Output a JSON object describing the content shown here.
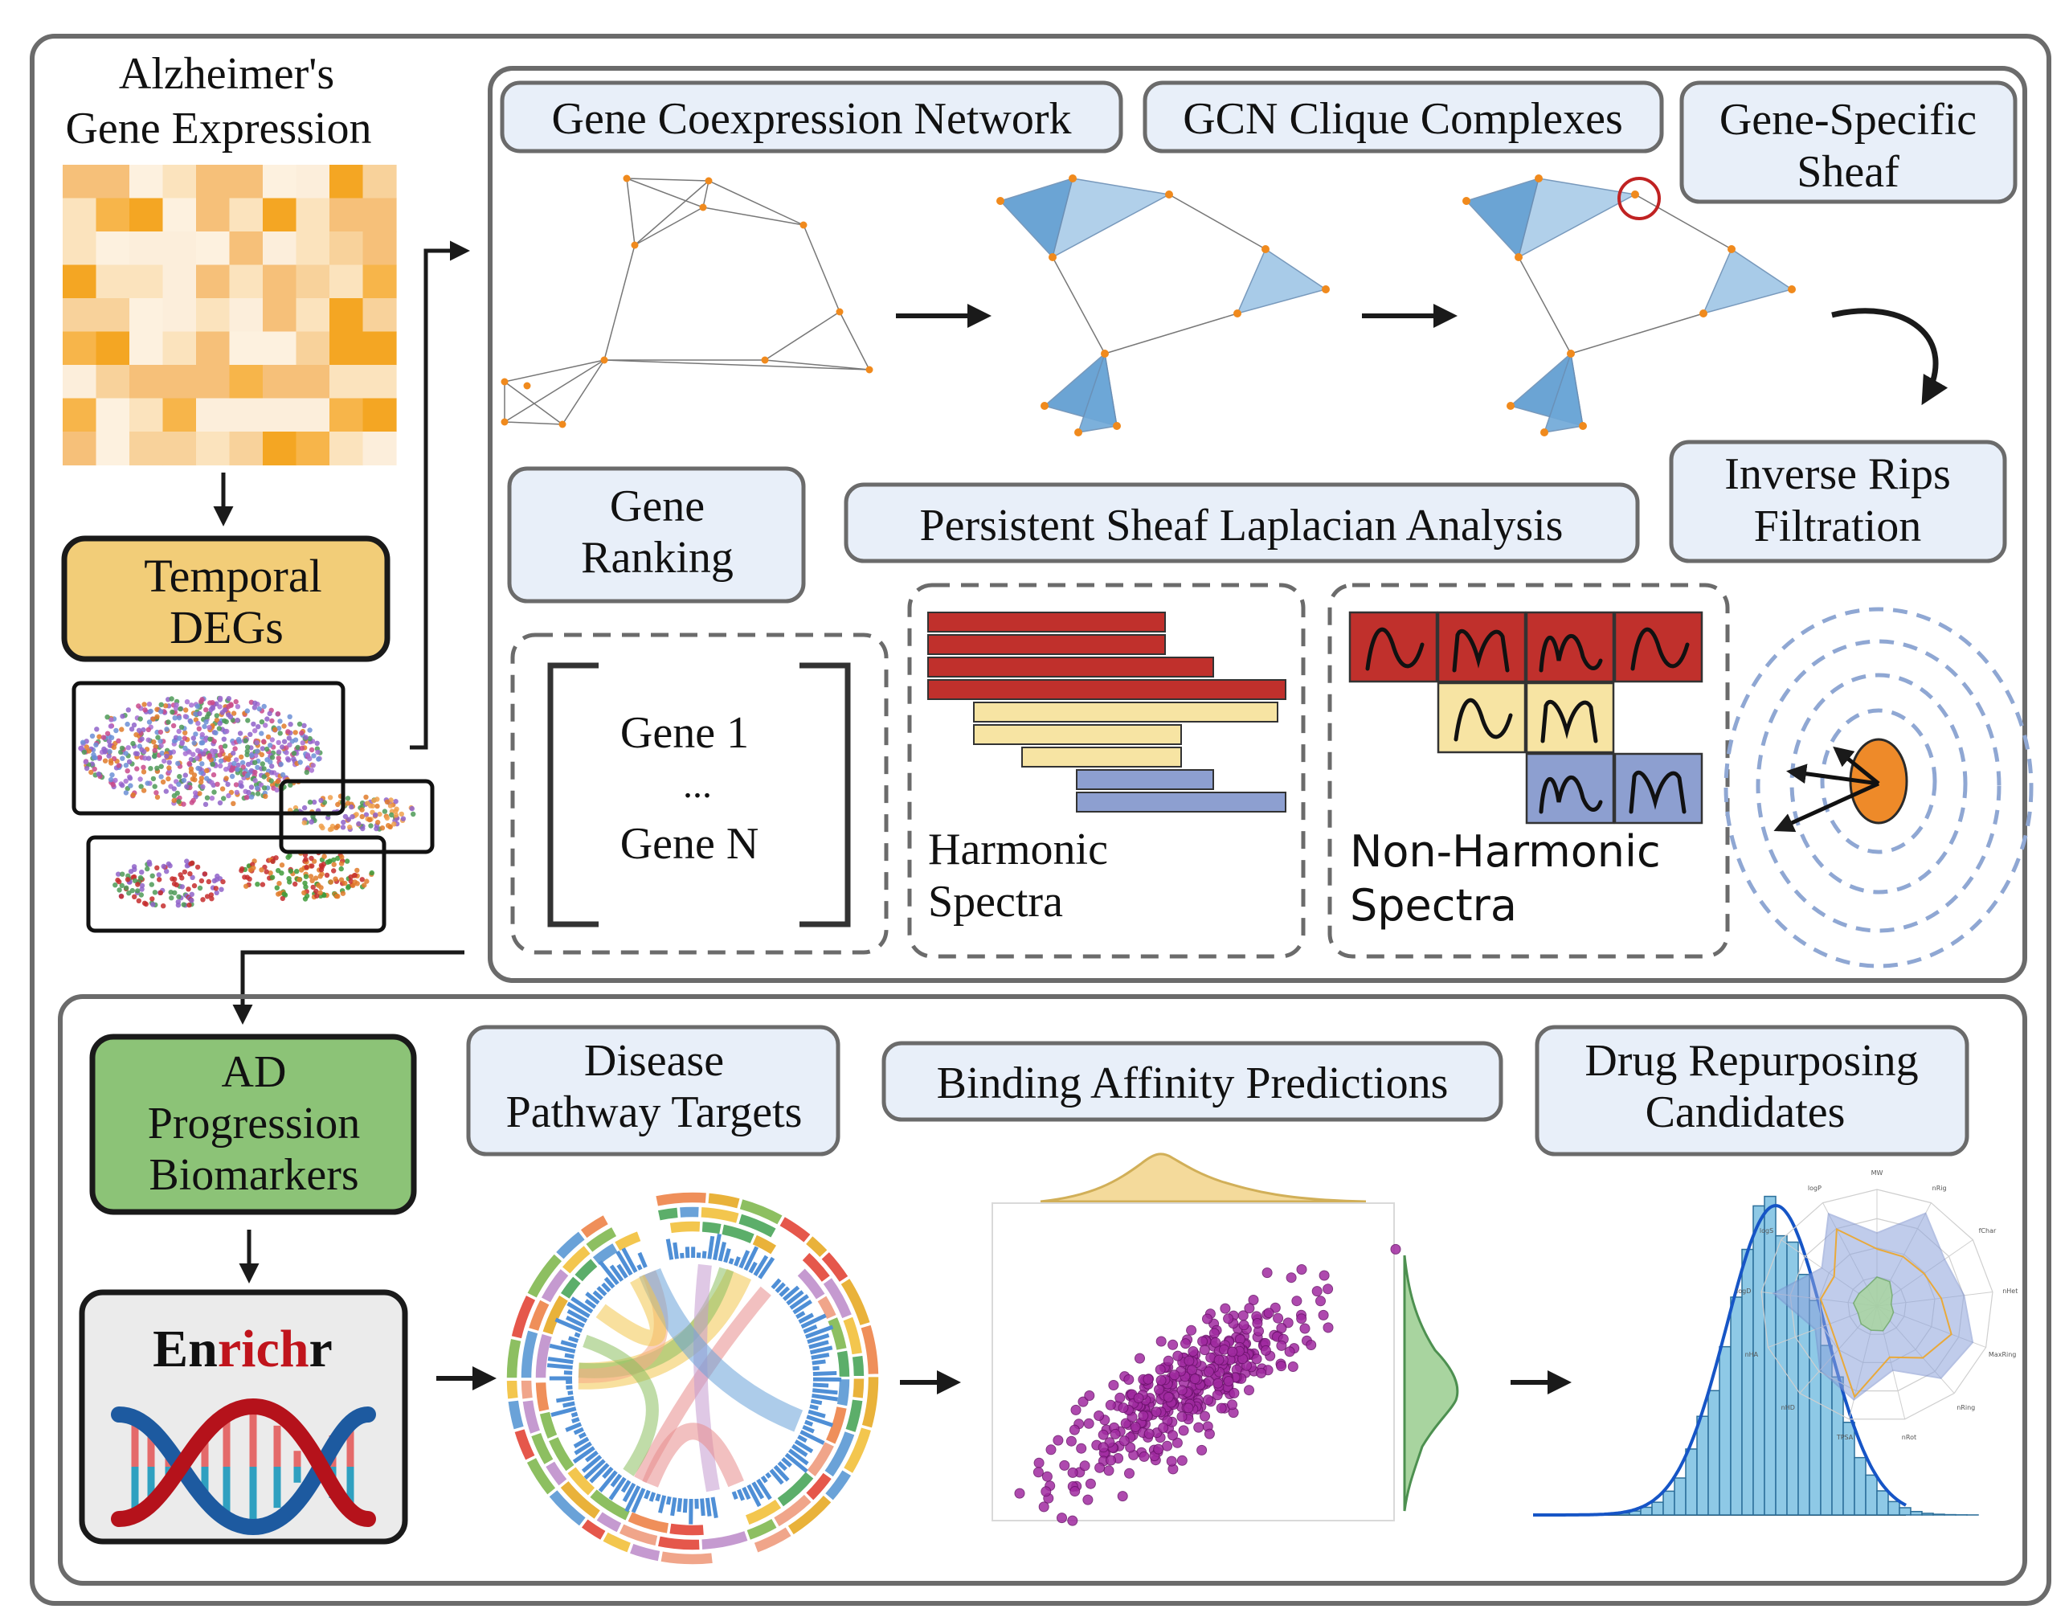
{
  "title": "Alzheimer's Gene Expression",
  "title_lines": [
    "Alzheimer's",
    "Gene Expression"
  ],
  "left": {
    "temporal_degs_lines": [
      "Temporal",
      "DEGs"
    ],
    "ad_biomarkers_lines": [
      "AD",
      "Progression",
      "Biomarkers"
    ],
    "enrichr": {
      "en": "En",
      "rich": "rich",
      "r": "r"
    }
  },
  "top_panel": {
    "gcn_label": "Gene Coexpression Network",
    "clique_label": "GCN Clique Complexes",
    "sheaf_label_lines": [
      "Gene-Specific",
      "Sheaf"
    ],
    "rips_label_lines": [
      "Inverse Rips",
      "Filtration"
    ],
    "pslap_label": "Persistent Sheaf Laplacian Analysis",
    "ranking_label_lines": [
      "Gene",
      "Ranking"
    ],
    "gene_list": [
      "Gene 1",
      "...",
      "Gene N"
    ],
    "harmonic_lines": [
      "Harmonic",
      "Spectra"
    ],
    "nonharmonic_lines": [
      "Non-Harmonic",
      "Spectra"
    ]
  },
  "bottom_panel": {
    "disease_label_lines": [
      "Disease",
      "Pathway Targets"
    ],
    "binding_label": "Binding Affinity Predictions",
    "drug_label_lines": [
      "Drug Repurposing",
      "Candidates"
    ],
    "radar_axes": [
      "MW",
      "nRig",
      "fChar",
      "nHet",
      "MaxRing",
      "nRing",
      "nRot",
      "TPSA",
      "nHD",
      "nHA",
      "logD",
      "logS",
      "logP"
    ]
  },
  "colors": {
    "frame": "#6b6b6b",
    "label_box_fill": "#e8eff9",
    "temporal_fill": "#f2cd78",
    "ad_fill": "#8cc377",
    "enrichr_fill": "#ebebeb",
    "heat_dark": "#f4a623",
    "harmonic_red": "#c0302c",
    "harmonic_yellow": "#f7e4a3",
    "harmonic_blue": "#8d9fd0",
    "sheaf_blue": "#6ea3d3",
    "rips_orange": "#ee8a29",
    "rips_ring": "#8fa7d3",
    "density_yellow": "#f3d48a",
    "density_green": "#9acd8f",
    "scatter_purple": "#9b2a9b",
    "hist_blue": "#8ec9e6",
    "curve_blue": "#1655c6"
  }
}
